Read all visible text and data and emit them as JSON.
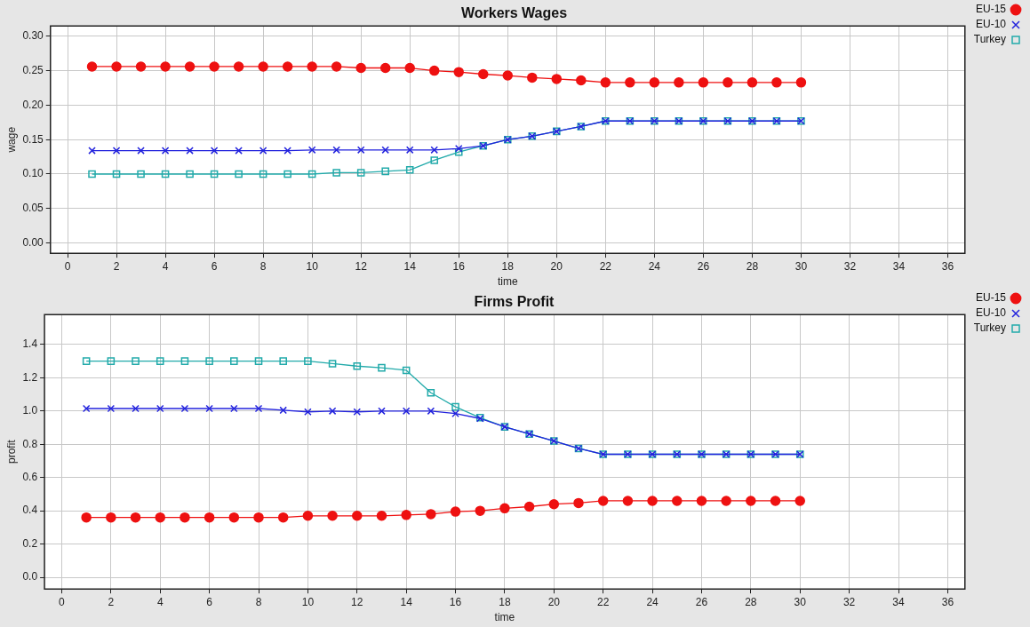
{
  "chart_data": [
    {
      "type": "line",
      "title": "Workers Wages",
      "xlabel": "time",
      "ylabel": "wage",
      "x": [
        1,
        2,
        3,
        4,
        5,
        6,
        7,
        8,
        9,
        10,
        11,
        12,
        13,
        14,
        15,
        16,
        17,
        18,
        19,
        20,
        21,
        22,
        23,
        24,
        25,
        26,
        27,
        28,
        29,
        30
      ],
      "series": [
        {
          "name": "EU-15",
          "color": "#ee1111",
          "marker": "circle",
          "values": [
            0.256,
            0.256,
            0.256,
            0.256,
            0.256,
            0.256,
            0.256,
            0.256,
            0.256,
            0.256,
            0.256,
            0.254,
            0.254,
            0.254,
            0.25,
            0.248,
            0.245,
            0.243,
            0.24,
            0.238,
            0.236,
            0.233,
            0.233,
            0.233,
            0.233,
            0.233,
            0.233,
            0.233,
            0.233,
            0.233
          ]
        },
        {
          "name": "EU-10",
          "color": "#2222dd",
          "marker": "cross",
          "values": [
            0.134,
            0.134,
            0.134,
            0.134,
            0.134,
            0.134,
            0.134,
            0.134,
            0.134,
            0.135,
            0.135,
            0.135,
            0.135,
            0.135,
            0.135,
            0.137,
            0.141,
            0.15,
            0.155,
            0.162,
            0.169,
            0.177,
            0.177,
            0.177,
            0.177,
            0.177,
            0.177,
            0.177,
            0.177,
            0.177
          ]
        },
        {
          "name": "Turkey",
          "color": "#22aaaa",
          "marker": "square",
          "values": [
            0.1,
            0.1,
            0.1,
            0.1,
            0.1,
            0.1,
            0.1,
            0.1,
            0.1,
            0.1,
            0.102,
            0.102,
            0.104,
            0.106,
            0.12,
            0.132,
            0.141,
            0.15,
            0.155,
            0.162,
            0.169,
            0.177,
            0.177,
            0.177,
            0.177,
            0.177,
            0.177,
            0.177,
            0.177,
            0.177
          ]
        }
      ],
      "xlim": [
        -0.7,
        36.7
      ],
      "xticks": [
        0,
        2,
        4,
        6,
        8,
        10,
        12,
        14,
        16,
        18,
        20,
        22,
        24,
        26,
        28,
        30,
        32,
        34,
        36
      ],
      "ylim": [
        -0.015,
        0.315
      ],
      "yticks": [
        {
          "value": 0,
          "label": "0.00"
        },
        {
          "value": 0.05,
          "label": "0.05"
        },
        {
          "value": 0.1,
          "label": "0.10"
        },
        {
          "value": 0.15,
          "label": "0.15"
        },
        {
          "value": 0.2,
          "label": "0.20"
        },
        {
          "value": 0.25,
          "label": "0.25"
        },
        {
          "value": 0.3,
          "label": "0.30"
        }
      ],
      "grid": true,
      "legend": "top right",
      "line_style": "solid"
    },
    {
      "type": "line",
      "title": "Firms Profit",
      "xlabel": "time",
      "ylabel": "profit",
      "x": [
        1,
        2,
        3,
        4,
        5,
        6,
        7,
        8,
        9,
        10,
        11,
        12,
        13,
        14,
        15,
        16,
        17,
        18,
        19,
        20,
        21,
        22,
        23,
        24,
        25,
        26,
        27,
        28,
        29,
        30
      ],
      "series": [
        {
          "name": "EU-15",
          "color": "#ee1111",
          "marker": "circle",
          "values": [
            0.36,
            0.36,
            0.36,
            0.36,
            0.36,
            0.36,
            0.36,
            0.36,
            0.36,
            0.37,
            0.37,
            0.37,
            0.37,
            0.375,
            0.38,
            0.395,
            0.4,
            0.415,
            0.425,
            0.44,
            0.447,
            0.46,
            0.46,
            0.46,
            0.46,
            0.46,
            0.46,
            0.46,
            0.46,
            0.46
          ]
        },
        {
          "name": "EU-10",
          "color": "#2222dd",
          "marker": "cross",
          "values": [
            1.015,
            1.015,
            1.015,
            1.015,
            1.015,
            1.015,
            1.015,
            1.015,
            1.005,
            0.995,
            1.0,
            0.995,
            1.0,
            1.0,
            1.0,
            0.985,
            0.955,
            0.905,
            0.862,
            0.82,
            0.775,
            0.74,
            0.74,
            0.74,
            0.74,
            0.74,
            0.74,
            0.74,
            0.74,
            0.74
          ]
        },
        {
          "name": "Turkey",
          "color": "#22aaaa",
          "marker": "square",
          "values": [
            1.3,
            1.3,
            1.3,
            1.3,
            1.3,
            1.3,
            1.3,
            1.3,
            1.3,
            1.3,
            1.285,
            1.27,
            1.26,
            1.245,
            1.11,
            1.025,
            0.96,
            0.905,
            0.862,
            0.82,
            0.775,
            0.74,
            0.74,
            0.74,
            0.74,
            0.74,
            0.74,
            0.74,
            0.74,
            0.74
          ]
        }
      ],
      "xlim": [
        -0.7,
        36.7
      ],
      "xticks": [
        0,
        2,
        4,
        6,
        8,
        10,
        12,
        14,
        16,
        18,
        20,
        22,
        24,
        26,
        28,
        30,
        32,
        34,
        36
      ],
      "ylim": [
        -0.07,
        1.58
      ],
      "yticks": [
        {
          "value": 0,
          "label": "0.0"
        },
        {
          "value": 0.2,
          "label": "0.2"
        },
        {
          "value": 0.4,
          "label": "0.4"
        },
        {
          "value": 0.6,
          "label": "0.6"
        },
        {
          "value": 0.8,
          "label": "0.8"
        },
        {
          "value": 1.0,
          "label": "1.0"
        },
        {
          "value": 1.2,
          "label": "1.2"
        },
        {
          "value": 1.4,
          "label": "1.4"
        }
      ],
      "grid": true,
      "legend": "top right",
      "line_style": "solid"
    }
  ]
}
